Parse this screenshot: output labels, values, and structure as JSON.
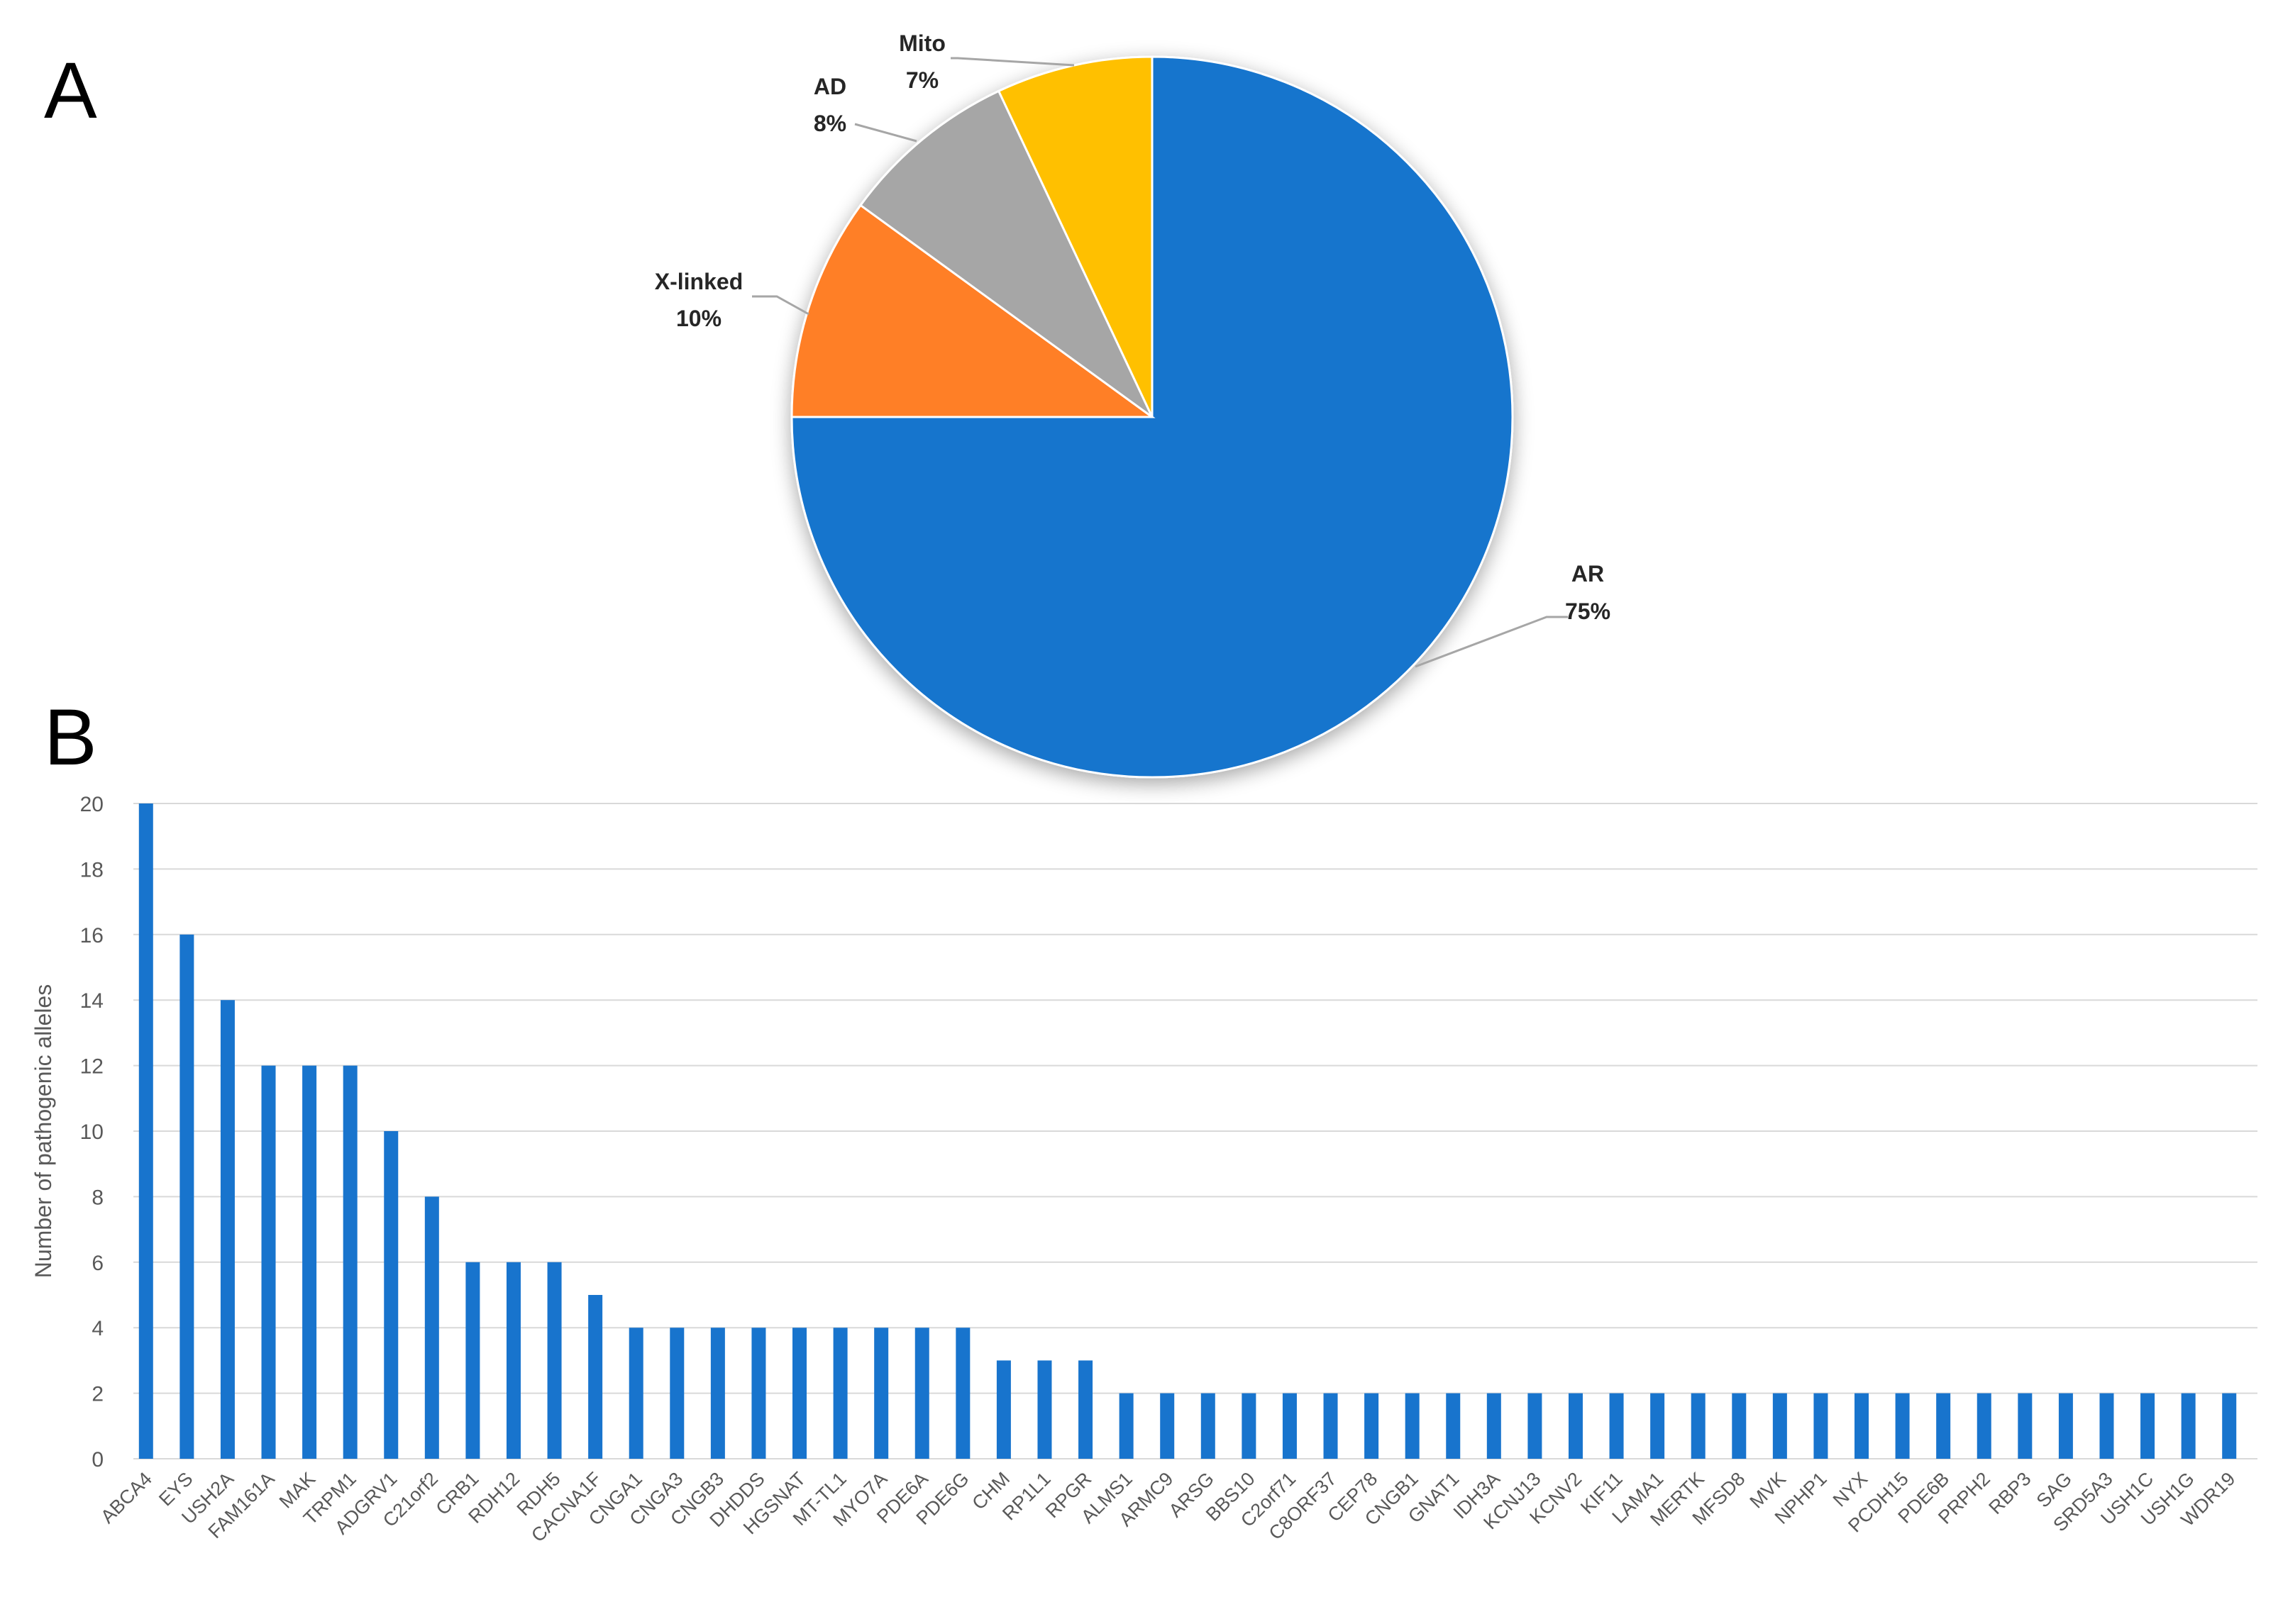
{
  "panel_labels": [
    "A",
    "B"
  ],
  "colors": {
    "AR": "#1874CD",
    "X-linked": "#FF7F27",
    "AD": "#A6A6A6",
    "Mito": "#FFC000",
    "bar": "#1874CD",
    "grid": "#D9D9D9",
    "leader": "#A6A6A6"
  },
  "chart_data": [
    {
      "type": "pie",
      "panel": "A",
      "slices": [
        {
          "label": "AR",
          "value": 75,
          "value_label": "75%"
        },
        {
          "label": "X-linked",
          "value": 10,
          "value_label": "10%"
        },
        {
          "label": "AD",
          "value": 8,
          "value_label": "8%"
        },
        {
          "label": "Mito",
          "value": 7,
          "value_label": "7%"
        }
      ]
    },
    {
      "type": "bar",
      "panel": "B",
      "ylabel": "Number of pathogenic alleles",
      "ylim": [
        0,
        20
      ],
      "yticks": [
        0,
        2,
        4,
        6,
        8,
        10,
        12,
        14,
        16,
        18,
        20
      ],
      "grid": true,
      "categories": [
        "ABCA4",
        "EYS",
        "USH2A",
        "FAM161A",
        "MAK",
        "TRPM1",
        "ADGRV1",
        "C21orf2",
        "CRB1",
        "RDH12",
        "RDH5",
        "CACNA1F",
        "CNGA1",
        "CNGA3",
        "CNGB3",
        "DHDDS",
        "HGSNAT",
        "MT-TL1",
        "MYO7A",
        "PDE6A",
        "PDE6G",
        "CHM",
        "RP1L1",
        "RPGR",
        "ALMS1",
        "ARMC9",
        "ARSG",
        "BBS10",
        "C2orf71",
        "C8ORF37",
        "CEP78",
        "CNGB1",
        "GNAT1",
        "IDH3A",
        "KCNJ13",
        "KCNV2",
        "KIF11",
        "LAMA1",
        "MERTK",
        "MFSD8",
        "MVK",
        "NPHP1",
        "NYX",
        "PCDH15",
        "PDE6B",
        "PRPH2",
        "RBP3",
        "SAG",
        "SRD5A3",
        "USH1C",
        "USH1G",
        "WDR19"
      ],
      "values": [
        20,
        16,
        14,
        12,
        12,
        12,
        10,
        8,
        6,
        6,
        6,
        5,
        4,
        4,
        4,
        4,
        4,
        4,
        4,
        4,
        4,
        3,
        3,
        3,
        2,
        2,
        2,
        2,
        2,
        2,
        2,
        2,
        2,
        2,
        2,
        2,
        2,
        2,
        2,
        2,
        2,
        2,
        2,
        2,
        2,
        2,
        2,
        2,
        2,
        2,
        2,
        2
      ]
    }
  ]
}
